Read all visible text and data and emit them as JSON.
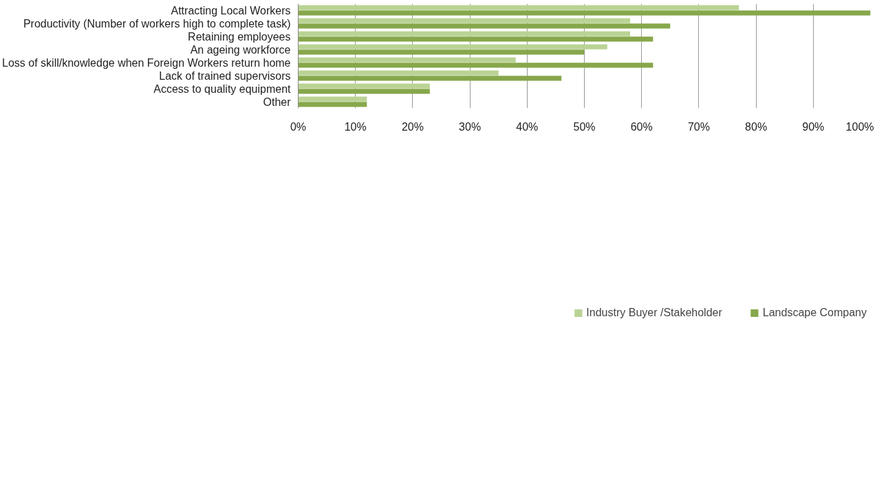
{
  "chart_data": {
    "type": "bar",
    "orientation": "horizontal",
    "categories": [
      "Attracting Local Workers",
      "Productivity (Number of workers high to complete task)",
      "Retaining employees",
      "An ageing workforce",
      "Loss of skill/knowledge when Foreign Workers return home",
      "Lack of trained supervisors",
      "Access to quality equipment",
      "Other"
    ],
    "series": [
      {
        "name": "Industry Buyer /Stakeholder",
        "color": "#bad394",
        "values": [
          77,
          58,
          58,
          54,
          38,
          35,
          23,
          12
        ]
      },
      {
        "name": "Landscape Company",
        "color": "#87a74b",
        "values": [
          100,
          65,
          62,
          50,
          62,
          46,
          23,
          12
        ]
      }
    ],
    "xlim": [
      0,
      100
    ],
    "xticks": [
      {
        "value": 0,
        "label": "0%"
      },
      {
        "value": 10,
        "label": "10%"
      },
      {
        "value": 20,
        "label": "20%"
      },
      {
        "value": 30,
        "label": "30%"
      },
      {
        "value": 40,
        "label": "40%"
      },
      {
        "value": 50,
        "label": "50%"
      },
      {
        "value": 60,
        "label": "60%"
      },
      {
        "value": 70,
        "label": "70%"
      },
      {
        "value": 80,
        "label": "80%"
      },
      {
        "value": 90,
        "label": "90%"
      },
      {
        "value": 100,
        "label": "100%"
      }
    ],
    "grid": "x",
    "legend": "bottom"
  }
}
